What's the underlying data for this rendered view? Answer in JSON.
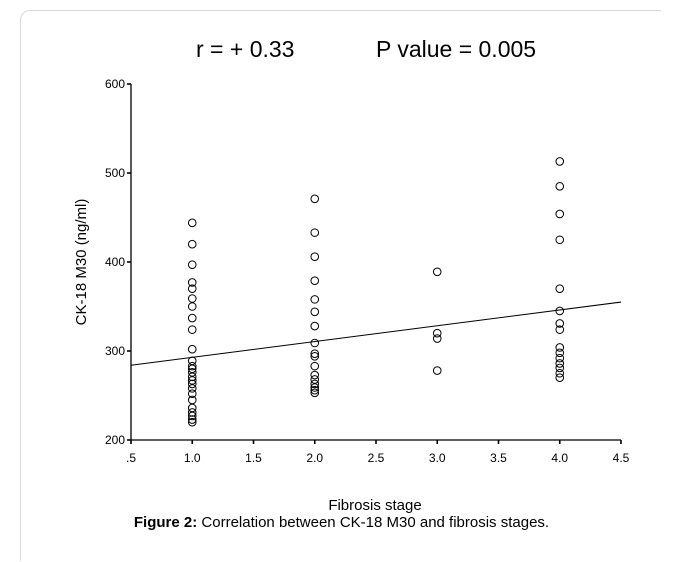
{
  "header": {
    "r_text": "r = + 0.33",
    "p_text": "P value = 0.005"
  },
  "caption": {
    "label": "Figure 2:",
    "text": "Correlation between CK-18 M30 and fibrosis stages."
  },
  "chart_data": {
    "type": "scatter",
    "xlabel": "Fibrosis stage",
    "ylabel": "CK-18 M30 (ng/ml)",
    "xlim": [
      0.5,
      4.5
    ],
    "ylim": [
      200,
      600
    ],
    "x_ticks": [
      0.5,
      1.0,
      1.5,
      2.0,
      2.5,
      3.0,
      3.5,
      4.0,
      4.5
    ],
    "x_tick_labels": [
      ".5",
      "1.0",
      "1.5",
      "2.0",
      "2.5",
      "3.0",
      "3.5",
      "4.0",
      "4.5"
    ],
    "y_ticks": [
      200,
      300,
      400,
      500,
      600
    ],
    "y_tick_labels": [
      "200",
      "300",
      "400",
      "500",
      "600"
    ],
    "grid": false,
    "point_color": "#000000",
    "points": [
      {
        "x": 1,
        "y": 444
      },
      {
        "x": 1,
        "y": 420
      },
      {
        "x": 1,
        "y": 397
      },
      {
        "x": 1,
        "y": 377
      },
      {
        "x": 1,
        "y": 370
      },
      {
        "x": 1,
        "y": 359
      },
      {
        "x": 1,
        "y": 350
      },
      {
        "x": 1,
        "y": 337
      },
      {
        "x": 1,
        "y": 324
      },
      {
        "x": 1,
        "y": 302
      },
      {
        "x": 1,
        "y": 289
      },
      {
        "x": 1,
        "y": 283
      },
      {
        "x": 1,
        "y": 280
      },
      {
        "x": 1,
        "y": 276
      },
      {
        "x": 1,
        "y": 271
      },
      {
        "x": 1,
        "y": 267
      },
      {
        "x": 1,
        "y": 263
      },
      {
        "x": 1,
        "y": 258
      },
      {
        "x": 1,
        "y": 252
      },
      {
        "x": 1,
        "y": 245
      },
      {
        "x": 1,
        "y": 236
      },
      {
        "x": 1,
        "y": 231
      },
      {
        "x": 1,
        "y": 227
      },
      {
        "x": 1,
        "y": 223
      },
      {
        "x": 1,
        "y": 220
      },
      {
        "x": 2,
        "y": 471
      },
      {
        "x": 2,
        "y": 433
      },
      {
        "x": 2,
        "y": 406
      },
      {
        "x": 2,
        "y": 379
      },
      {
        "x": 2,
        "y": 358
      },
      {
        "x": 2,
        "y": 344
      },
      {
        "x": 2,
        "y": 328
      },
      {
        "x": 2,
        "y": 309
      },
      {
        "x": 2,
        "y": 297
      },
      {
        "x": 2,
        "y": 294
      },
      {
        "x": 2,
        "y": 283
      },
      {
        "x": 2,
        "y": 273
      },
      {
        "x": 2,
        "y": 268
      },
      {
        "x": 2,
        "y": 263
      },
      {
        "x": 2,
        "y": 259
      },
      {
        "x": 2,
        "y": 256
      },
      {
        "x": 2,
        "y": 253
      },
      {
        "x": 3,
        "y": 389
      },
      {
        "x": 3,
        "y": 320
      },
      {
        "x": 3,
        "y": 314
      },
      {
        "x": 3,
        "y": 278
      },
      {
        "x": 4,
        "y": 513
      },
      {
        "x": 4,
        "y": 485
      },
      {
        "x": 4,
        "y": 454
      },
      {
        "x": 4,
        "y": 425
      },
      {
        "x": 4,
        "y": 370
      },
      {
        "x": 4,
        "y": 345
      },
      {
        "x": 4,
        "y": 331
      },
      {
        "x": 4,
        "y": 324
      },
      {
        "x": 4,
        "y": 304
      },
      {
        "x": 4,
        "y": 298
      },
      {
        "x": 4,
        "y": 292
      },
      {
        "x": 4,
        "y": 286
      },
      {
        "x": 4,
        "y": 281
      },
      {
        "x": 4,
        "y": 275
      },
      {
        "x": 4,
        "y": 270
      }
    ],
    "fit_line": {
      "x": [
        0.5,
        4.5
      ],
      "y": [
        284,
        355
      ]
    }
  }
}
